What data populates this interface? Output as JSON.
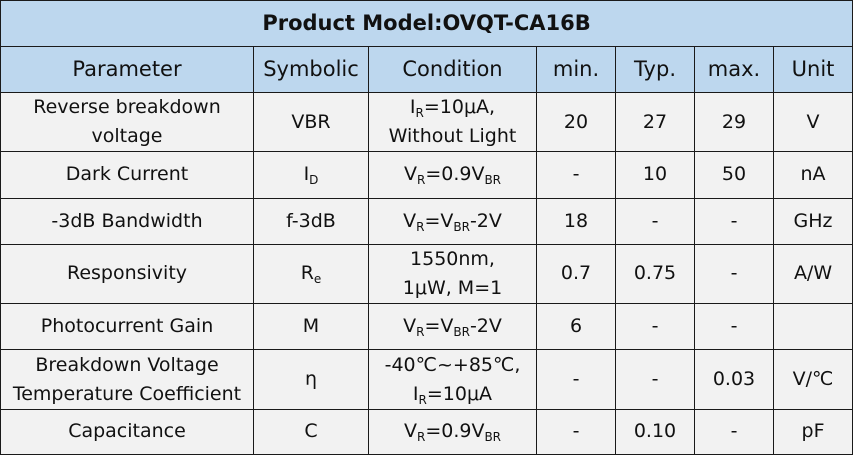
{
  "title": "Product Model:OVQT-CA16B",
  "columns": [
    "Parameter",
    "Symbolic",
    "Condition",
    "min.",
    "Typ.",
    "max.",
    "Unit"
  ],
  "rows": [
    {
      "parameter": [
        "Reverse breakdown",
        "voltage"
      ],
      "symbol": [
        {
          "t": "VBR"
        }
      ],
      "condition": [
        [
          {
            "t": "I"
          },
          {
            "s": "R"
          },
          {
            "t": "=10μA,"
          }
        ],
        [
          {
            "t": "Without Light"
          }
        ]
      ],
      "min": "20",
      "typ": "27",
      "max": "29",
      "unit": "V"
    },
    {
      "parameter": [
        "Dark Current"
      ],
      "symbol": [
        {
          "t": "I"
        },
        {
          "s": "D"
        }
      ],
      "condition": [
        [
          {
            "t": "V"
          },
          {
            "s": "R"
          },
          {
            "t": "=0.9V"
          },
          {
            "s": "BR"
          }
        ]
      ],
      "min": "-",
      "typ": "10",
      "max": "50",
      "unit": "nA"
    },
    {
      "parameter": [
        "-3dB Bandwidth"
      ],
      "symbol": [
        {
          "t": "f-3dB"
        }
      ],
      "condition": [
        [
          {
            "t": "V"
          },
          {
            "s": "R"
          },
          {
            "t": "=V"
          },
          {
            "s": "BR"
          },
          {
            "t": "-2V"
          }
        ]
      ],
      "min": "18",
      "typ": "-",
      "max": "-",
      "unit": "GHz"
    },
    {
      "parameter": [
        "Responsivity"
      ],
      "symbol": [
        {
          "t": "R"
        },
        {
          "s": "e"
        }
      ],
      "condition": [
        [
          {
            "t": "1550nm,"
          }
        ],
        [
          {
            "t": "1μW, M=1"
          }
        ]
      ],
      "min": "0.7",
      "typ": "0.75",
      "max": "-",
      "unit": "A/W"
    },
    {
      "parameter": [
        "Photocurrent Gain"
      ],
      "symbol": [
        {
          "t": "M"
        }
      ],
      "condition": [
        [
          {
            "t": "V"
          },
          {
            "s": "R"
          },
          {
            "t": "=V"
          },
          {
            "s": "BR"
          },
          {
            "t": "-2V"
          }
        ]
      ],
      "min": "6",
      "typ": "-",
      "max": "-",
      "unit": ""
    },
    {
      "parameter": [
        "Breakdown Voltage",
        "Temperature Coefficient"
      ],
      "symbol": [
        {
          "t": "η"
        }
      ],
      "condition": [
        [
          {
            "t": "-40℃~+85℃,"
          }
        ],
        [
          {
            "t": "I"
          },
          {
            "s": "R"
          },
          {
            "t": "=10μA"
          }
        ]
      ],
      "min": "-",
      "typ": "-",
      "max": "0.03",
      "unit": "V/℃"
    },
    {
      "parameter": [
        "Capacitance"
      ],
      "symbol": [
        {
          "t": "C"
        }
      ],
      "condition": [
        [
          {
            "t": "V"
          },
          {
            "s": "R"
          },
          {
            "t": "=0.9V"
          },
          {
            "s": "BR"
          }
        ]
      ],
      "min": "-",
      "typ": "0.10",
      "max": "-",
      "unit": "pF"
    }
  ]
}
